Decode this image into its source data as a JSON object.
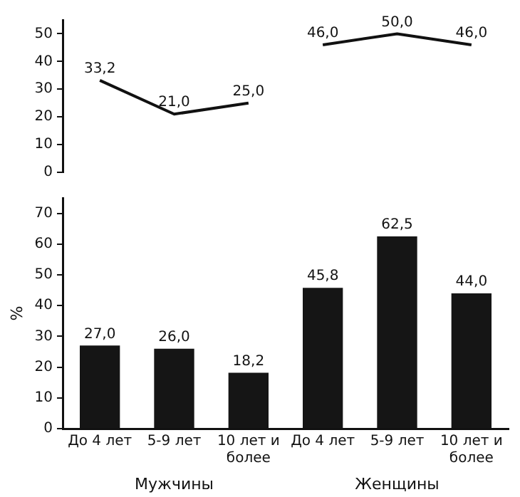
{
  "chart_data": [
    {
      "type": "line",
      "categories": [
        null,
        null,
        null,
        null,
        null,
        null
      ],
      "series": [
        {
          "color": "#111111",
          "values": [
            33.2,
            21.0,
            25.0,
            null,
            null,
            null
          ],
          "value_labels": [
            "33,2",
            "21,0",
            "25,0",
            null,
            null,
            null
          ]
        },
        {
          "color": "#111111",
          "values": [
            null,
            null,
            null,
            46.0,
            50.0,
            46.0
          ],
          "value_labels": [
            null,
            null,
            null,
            "46,0",
            "50,0",
            "46,0"
          ]
        }
      ],
      "ylim": [
        0,
        55
      ],
      "yticks": [
        0,
        10,
        20,
        30,
        40,
        50
      ],
      "tick_labels": "y",
      "marker": "none",
      "line_style": "solid",
      "grid": false,
      "legend": false
    },
    {
      "type": "bar",
      "categories": [
        "До 4 лет",
        "5-9 лет",
        "10 лет и более",
        "До 4 лет",
        "5-9 лет",
        "10 лет и более"
      ],
      "values": [
        27.0,
        26.0,
        18.2,
        45.8,
        62.5,
        44.0
      ],
      "color": "#151515",
      "value_labels": [
        "27,0",
        "26,0",
        "18,2",
        "45,8",
        "62,5",
        "44,0"
      ],
      "ylabel": "%",
      "ylim": [
        0,
        75
      ],
      "yticks": [
        0,
        10,
        20,
        30,
        40,
        50,
        60,
        70
      ],
      "grid": false,
      "legend": false,
      "annotations": [
        "Мужчины",
        "Женщины"
      ]
    }
  ]
}
